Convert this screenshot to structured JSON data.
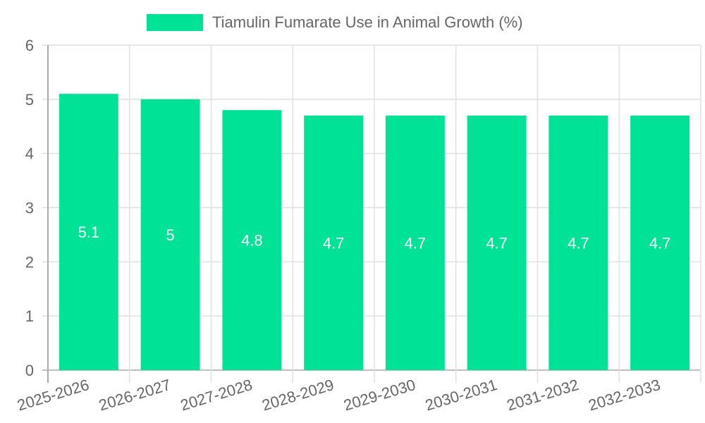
{
  "legend": {
    "label": "Tiamulin Fumarate Use in Animal Growth (%)",
    "color": "#00e396"
  },
  "colors": {
    "bar": "#00e396",
    "grid": "#e0e0e0",
    "axis": "#aaaaaa",
    "tick_text": "#666666",
    "data_label": "#ffffff"
  },
  "chart_data": {
    "type": "bar",
    "title": "",
    "categories": [
      "2025-2026",
      "2026-2027",
      "2027-2028",
      "2028-2029",
      "2029-2030",
      "2030-2031",
      "2031-2032",
      "2032-2033"
    ],
    "series": [
      {
        "name": "Tiamulin Fumarate Use in Animal Growth (%)",
        "values": [
          5.1,
          5,
          4.8,
          4.7,
          4.7,
          4.7,
          4.7,
          4.7
        ]
      }
    ],
    "data_labels": [
      "5.1",
      "5",
      "4.8",
      "4.7",
      "4.7",
      "4.7",
      "4.7",
      "4.7"
    ],
    "xlabel": "",
    "ylabel": "",
    "ylim": [
      0,
      6
    ],
    "yticks": [
      0,
      1,
      2,
      3,
      4,
      5,
      6
    ],
    "grid": true,
    "legend_position": "top"
  }
}
